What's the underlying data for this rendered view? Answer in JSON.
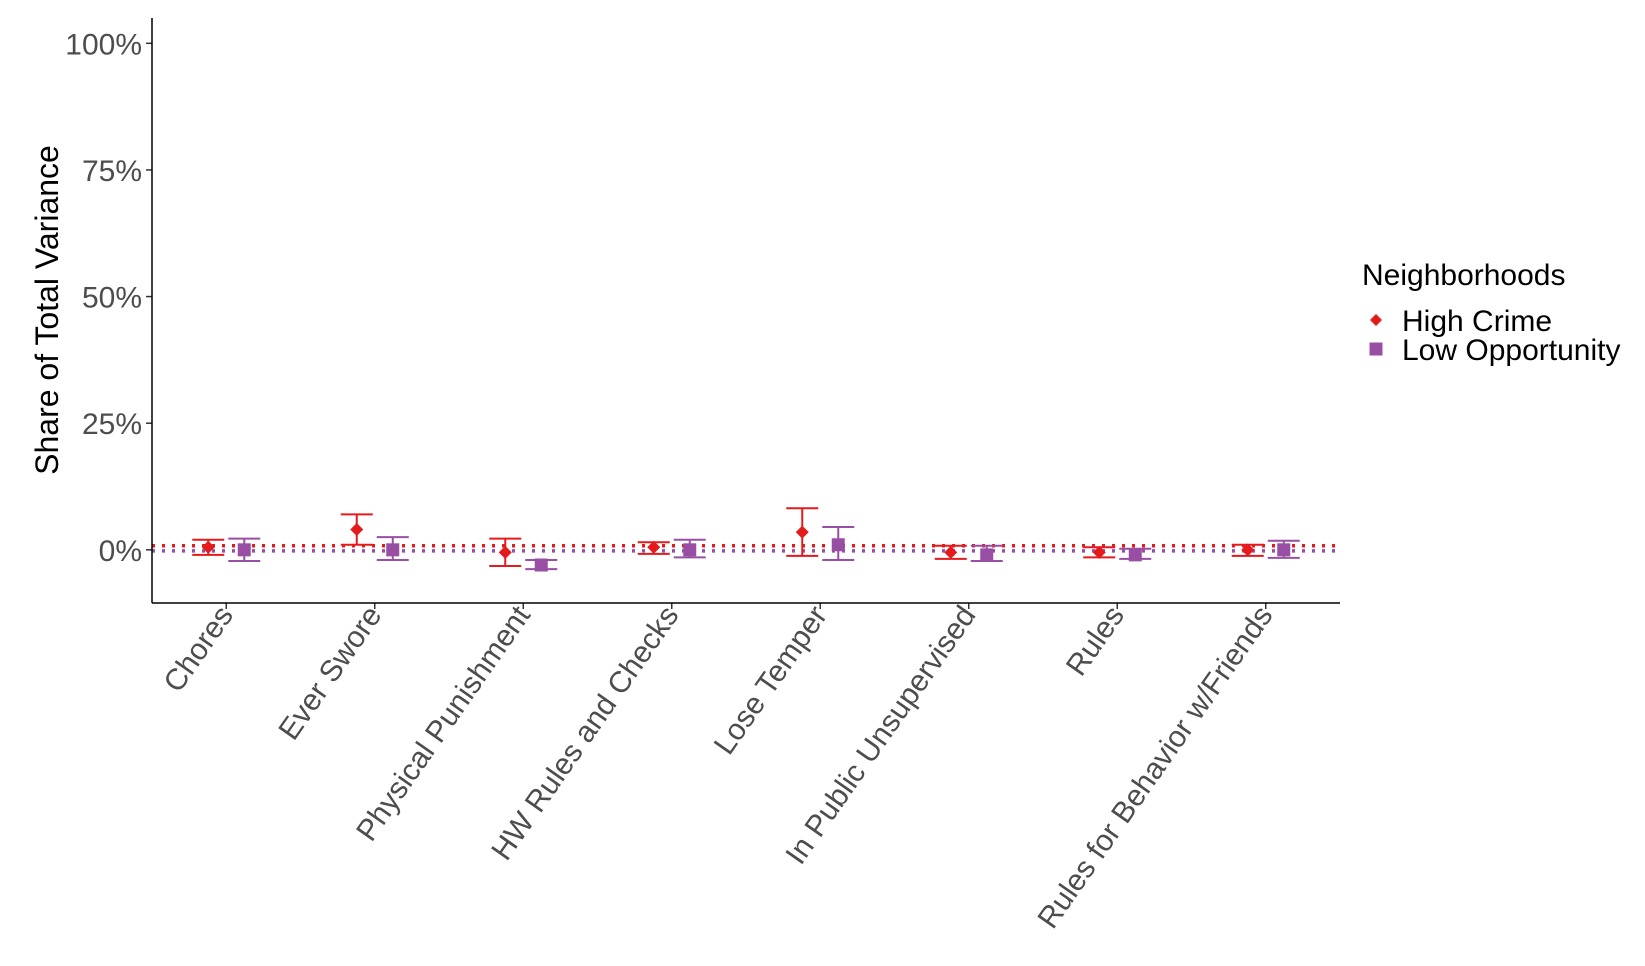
{
  "chart_data": {
    "type": "scatter",
    "ylabel": "Share of Total Variance",
    "y_ticks": [
      "100%",
      "75%",
      "50%",
      "25%",
      "0%"
    ],
    "y_tick_values": [
      100,
      75,
      50,
      25,
      0
    ],
    "ylim": [
      -10.5,
      105
    ],
    "categories": [
      "Chores",
      "Ever Swore",
      "Physical Punishment",
      "HW Rules and Checks",
      "Lose Temper",
      "In Public Unsupervised",
      "Rules",
      "Rules for Behavior w/Friends"
    ],
    "legend": {
      "title": "Neighborhoods",
      "position": "right"
    },
    "reference_lines": [
      {
        "value": 0.8,
        "color": "#e41a1c",
        "style": "dotted"
      },
      {
        "value": -0.2,
        "color": "#984ea3",
        "style": "dotted"
      }
    ],
    "series": [
      {
        "name": "High Crime",
        "marker": "diamond",
        "color": "#e41a1c",
        "values": [
          0.5,
          4.0,
          -0.5,
          0.5,
          3.5,
          -0.5,
          -0.5,
          0.0
        ],
        "lower": [
          -1.0,
          1.0,
          -3.2,
          -0.8,
          -1.2,
          -1.8,
          -1.5,
          -1.2
        ],
        "upper": [
          2.0,
          7.0,
          2.2,
          1.5,
          8.2,
          0.8,
          0.5,
          1.0
        ]
      },
      {
        "name": "Low Opportunity",
        "marker": "square",
        "color": "#984ea3",
        "values": [
          0.0,
          0.0,
          -3.0,
          0.0,
          1.0,
          -1.0,
          -1.0,
          0.0
        ],
        "lower": [
          -2.2,
          -2.0,
          -3.8,
          -1.5,
          -2.0,
          -2.2,
          -1.8,
          -1.6
        ],
        "upper": [
          2.2,
          2.5,
          -2.0,
          2.0,
          4.5,
          0.8,
          0.2,
          1.8
        ]
      }
    ]
  }
}
